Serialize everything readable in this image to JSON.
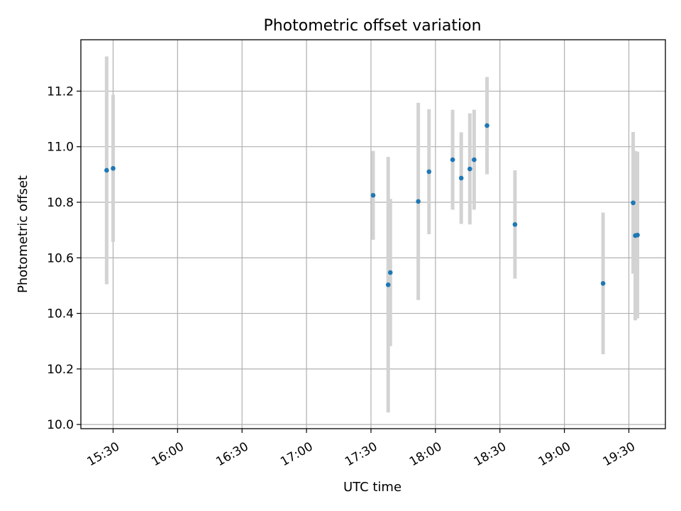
{
  "chart_data": {
    "type": "scatter",
    "title": "Photometric offset variation",
    "xlabel": "UTC time",
    "ylabel": "Photometric offset",
    "grid": true,
    "x_tick_labels": [
      "15:30",
      "16:00",
      "16:30",
      "17:00",
      "17:30",
      "18:00",
      "18:30",
      "19:00",
      "19:30"
    ],
    "x_tick_times": [
      "15:30",
      "16:00",
      "16:30",
      "17:00",
      "17:30",
      "18:00",
      "18:30",
      "19:00",
      "19:30"
    ],
    "xlim": [
      "15:15",
      "19:47"
    ],
    "y_tick_labels": [
      "10.0",
      "10.2",
      "10.4",
      "10.6",
      "10.8",
      "11.0",
      "11.2"
    ],
    "y_ticks": [
      10.0,
      10.2,
      10.4,
      10.6,
      10.8,
      11.0,
      11.2
    ],
    "ylim": [
      9.985,
      11.385
    ],
    "colors": {
      "point": "#1f77b4",
      "errorbar": "#d3d3d3"
    },
    "points": [
      {
        "time": "15:27",
        "y": 10.915,
        "err": 0.41
      },
      {
        "time": "15:30",
        "y": 10.922,
        "err": 0.265
      },
      {
        "time": "17:31",
        "y": 10.825,
        "err": 0.16
      },
      {
        "time": "17:38",
        "y": 10.503,
        "err": 0.46
      },
      {
        "time": "17:39",
        "y": 10.547,
        "err": 0.265
      },
      {
        "time": "17:52",
        "y": 10.803,
        "err": 0.355
      },
      {
        "time": "17:57",
        "y": 10.91,
        "err": 0.225
      },
      {
        "time": "18:08",
        "y": 10.953,
        "err": 0.18
      },
      {
        "time": "18:12",
        "y": 10.887,
        "err": 0.165
      },
      {
        "time": "18:16",
        "y": 10.92,
        "err": 0.2
      },
      {
        "time": "18:18",
        "y": 10.953,
        "err": 0.18
      },
      {
        "time": "18:24",
        "y": 11.076,
        "err": 0.175
      },
      {
        "time": "18:37",
        "y": 10.72,
        "err": 0.195
      },
      {
        "time": "19:18",
        "y": 10.508,
        "err": 0.255
      },
      {
        "time": "19:32",
        "y": 10.798,
        "err": 0.255
      },
      {
        "time": "19:33",
        "y": 10.68,
        "err": 0.305
      },
      {
        "time": "19:34",
        "y": 10.682,
        "err": 0.3
      }
    ]
  }
}
